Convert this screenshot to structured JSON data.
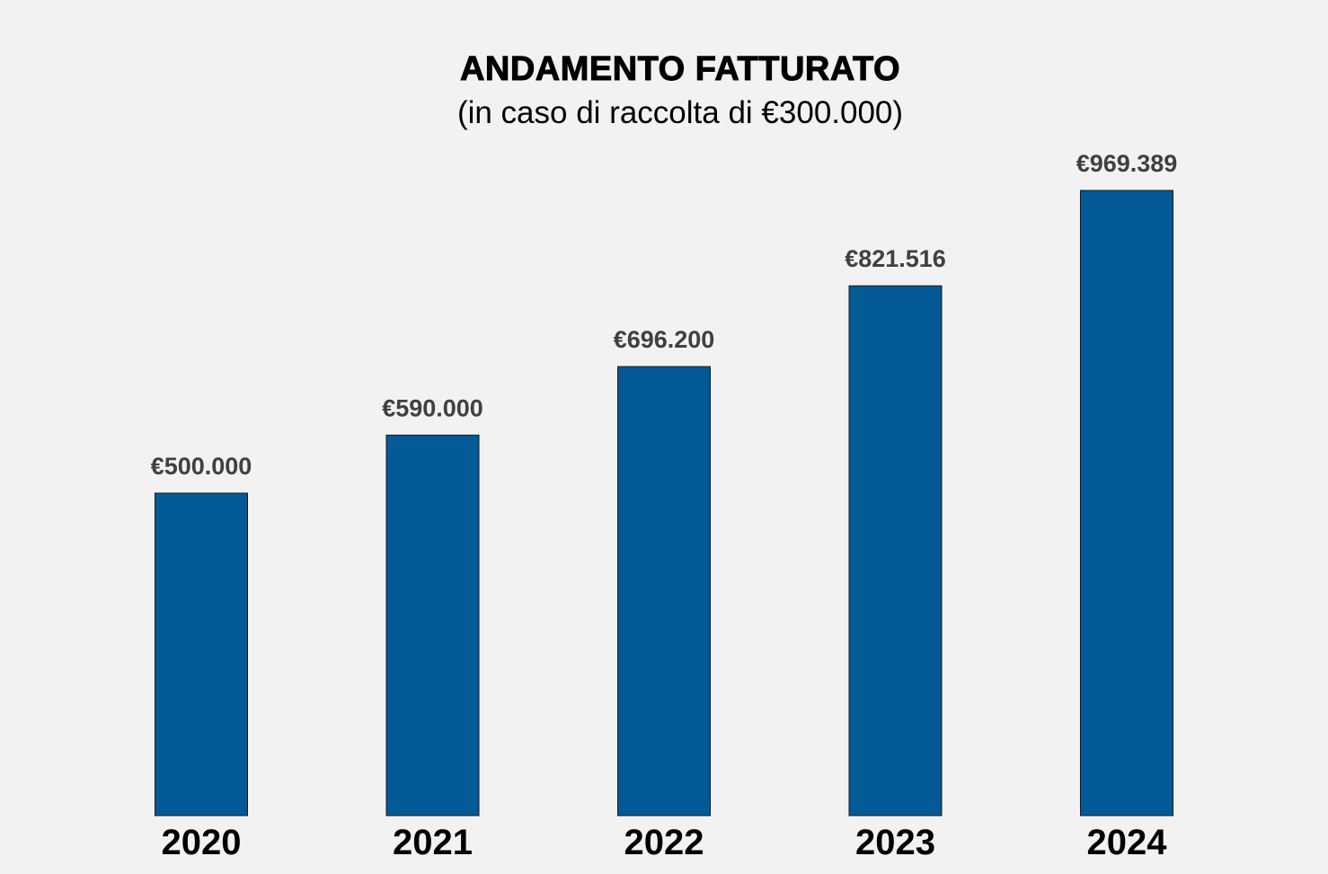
{
  "chart_data": {
    "type": "bar",
    "title": "ANDAMENTO FATTURATO",
    "subtitle": "(in caso di raccolta di €300.000)",
    "categories": [
      "2020",
      "2021",
      "2022",
      "2023",
      "2024"
    ],
    "values": [
      500000,
      590000,
      696200,
      821516,
      969389
    ],
    "value_labels": [
      "€500.000",
      "€590.000",
      "€696.200",
      "€821.516",
      "€969.389"
    ],
    "xlabel": "",
    "ylabel": "",
    "ylim": [
      0,
      969389
    ],
    "grid": false,
    "legend": "none",
    "bar_color": "#035a96",
    "value_label_color": "#404040"
  }
}
